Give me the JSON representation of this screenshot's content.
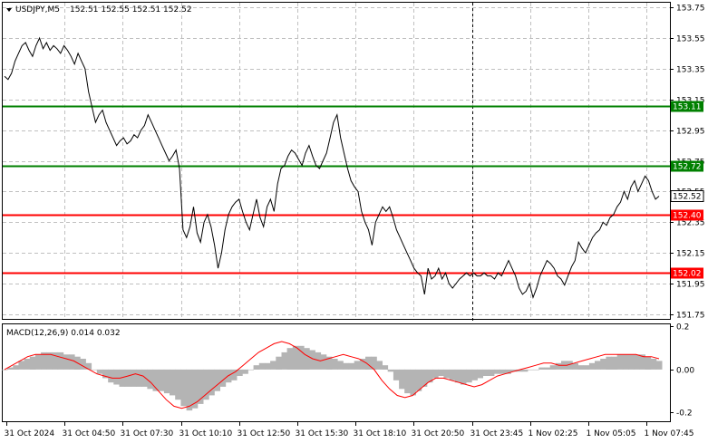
{
  "header": {
    "symbol_label": "USDJPY,M5",
    "ohlc": "152.51 152.55 152.51 152.52",
    "dropdown_icon": "triangle-down-icon"
  },
  "macd": {
    "label": "MACD(12,26,9) 0.014 0.032",
    "histogram_color": "#b4b4b4",
    "signal_color": "#ff0000"
  },
  "levels": [
    {
      "value": "153.11",
      "price": 153.11,
      "color": "#008000"
    },
    {
      "value": "152.72",
      "price": 152.72,
      "color": "#008000"
    },
    {
      "value": "152.40",
      "price": 152.4,
      "color": "#ff0000"
    },
    {
      "value": "152.02",
      "price": 152.02,
      "color": "#ff0000"
    }
  ],
  "current_price": {
    "value": "152.52",
    "price": 152.52
  },
  "chart_data": {
    "type": "line",
    "ylim": [
      151.72,
      153.78
    ],
    "price_ticks": [
      "153.75",
      "153.55",
      "153.35",
      "153.15",
      "152.95",
      "152.75",
      "152.55",
      "152.35",
      "152.15",
      "151.95",
      "151.75"
    ],
    "macd_ticks": [
      "0.2",
      "0.00",
      "-0.2"
    ],
    "time_ticks": [
      "31 Oct 2024",
      "31 Oct 04:50",
      "31 Oct 07:30",
      "31 Oct 10:10",
      "31 Oct 12:50",
      "31 Oct 15:30",
      "31 Oct 18:10",
      "31 Oct 20:50",
      "31 Oct 23:45",
      "1 Nov 02:25",
      "1 Nov 05:05",
      "1 Nov 07:45"
    ],
    "series": [
      {
        "values": [
          153.3,
          153.28,
          153.32,
          153.4,
          153.45,
          153.5,
          153.52,
          153.47,
          153.43,
          153.5,
          153.55,
          153.48,
          153.52,
          153.47,
          153.5,
          153.48,
          153.45,
          153.5,
          153.47,
          153.43,
          153.38,
          153.45,
          153.4,
          153.35,
          153.2,
          153.1,
          153.0,
          153.05,
          153.08,
          153.0,
          152.95,
          152.9,
          152.85,
          152.88,
          152.9,
          152.86,
          152.88,
          152.92,
          152.9,
          152.95,
          152.98,
          153.05,
          153.0,
          152.95,
          152.9,
          152.85,
          152.8,
          152.75,
          152.78,
          152.82,
          152.7,
          152.3,
          152.25,
          152.32,
          152.45,
          152.28,
          152.22,
          152.35,
          152.4,
          152.32,
          152.2,
          152.05,
          152.15,
          152.3,
          152.4,
          152.45,
          152.48,
          152.5,
          152.42,
          152.35,
          152.3,
          152.4,
          152.5,
          152.38,
          152.32,
          152.45,
          152.5,
          152.42,
          152.6,
          152.7,
          152.72,
          152.78,
          152.82,
          152.8,
          152.76,
          152.72,
          152.8,
          152.85,
          152.78,
          152.72,
          152.7,
          152.75,
          152.8,
          152.9,
          153.0,
          153.05,
          152.9,
          152.8,
          152.7,
          152.62,
          152.58,
          152.55,
          152.42,
          152.35,
          152.3,
          152.2,
          152.35,
          152.4,
          152.45,
          152.42,
          152.45,
          152.38,
          152.3,
          152.25,
          152.2,
          152.15,
          152.1,
          152.05,
          152.02,
          152.0,
          151.88,
          152.05,
          151.98,
          152.0,
          152.05,
          151.98,
          152.02,
          151.95,
          151.92,
          151.95,
          151.98,
          152.0,
          152.02,
          152.0,
          152.02,
          152.0,
          152.0,
          152.02,
          152.0,
          152.0,
          151.98,
          152.02,
          152.0,
          152.05,
          152.1,
          152.05,
          152.0,
          151.92,
          151.88,
          151.9,
          151.95,
          151.86,
          151.92,
          152.0,
          152.05,
          152.1,
          152.08,
          152.05,
          152.0,
          151.98,
          151.94,
          152.0,
          152.06,
          152.1,
          152.22,
          152.18,
          152.15,
          152.2,
          152.25,
          152.28,
          152.3,
          152.35,
          152.33,
          152.38,
          152.4,
          152.45,
          152.48,
          152.55,
          152.5,
          152.58,
          152.62,
          152.55,
          152.6,
          152.65,
          152.62,
          152.55,
          152.5,
          152.52
        ]
      }
    ],
    "macd": {
      "hist": [
        0.0,
        0.01,
        0.02,
        0.04,
        0.05,
        0.06,
        0.07,
        0.08,
        0.08,
        0.08,
        0.08,
        0.07,
        0.07,
        0.06,
        0.05,
        0.03,
        0.0,
        -0.02,
        -0.04,
        -0.06,
        -0.07,
        -0.08,
        -0.08,
        -0.08,
        -0.08,
        -0.08,
        -0.09,
        -0.1,
        -0.1,
        -0.11,
        -0.12,
        -0.14,
        -0.17,
        -0.19,
        -0.18,
        -0.16,
        -0.14,
        -0.12,
        -0.1,
        -0.08,
        -0.06,
        -0.05,
        -0.03,
        -0.02,
        0.0,
        0.02,
        0.03,
        0.03,
        0.04,
        0.06,
        0.08,
        0.1,
        0.11,
        0.11,
        0.1,
        0.09,
        0.08,
        0.07,
        0.06,
        0.05,
        0.04,
        0.03,
        0.03,
        0.04,
        0.05,
        0.06,
        0.06,
        0.04,
        0.02,
        -0.01,
        -0.05,
        -0.09,
        -0.11,
        -0.12,
        -0.1,
        -0.08,
        -0.06,
        -0.04,
        -0.03,
        -0.04,
        -0.05,
        -0.06,
        -0.07,
        -0.06,
        -0.05,
        -0.04,
        -0.03,
        -0.03,
        -0.02,
        -0.02,
        -0.02,
        -0.01,
        -0.01,
        -0.01,
        0.0,
        0.0,
        0.01,
        0.01,
        0.02,
        0.03,
        0.04,
        0.04,
        0.03,
        0.02,
        0.02,
        0.03,
        0.04,
        0.05,
        0.06,
        0.06,
        0.07,
        0.07,
        0.07,
        0.07,
        0.07,
        0.06,
        0.05,
        0.04
      ],
      "signal": [
        0.0,
        0.02,
        0.04,
        0.06,
        0.07,
        0.07,
        0.07,
        0.06,
        0.05,
        0.04,
        0.02,
        0.0,
        -0.02,
        -0.03,
        -0.04,
        -0.04,
        -0.03,
        -0.02,
        -0.03,
        -0.06,
        -0.1,
        -0.14,
        -0.17,
        -0.18,
        -0.17,
        -0.15,
        -0.12,
        -0.09,
        -0.06,
        -0.03,
        -0.01,
        0.02,
        0.05,
        0.08,
        0.1,
        0.12,
        0.13,
        0.12,
        0.1,
        0.07,
        0.05,
        0.04,
        0.05,
        0.06,
        0.07,
        0.06,
        0.05,
        0.03,
        0.0,
        -0.05,
        -0.09,
        -0.12,
        -0.13,
        -0.12,
        -0.09,
        -0.06,
        -0.04,
        -0.04,
        -0.05,
        -0.06,
        -0.07,
        -0.08,
        -0.07,
        -0.05,
        -0.03,
        -0.02,
        -0.01,
        0.0,
        0.01,
        0.02,
        0.03,
        0.03,
        0.02,
        0.02,
        0.03,
        0.04,
        0.05,
        0.06,
        0.07,
        0.07,
        0.07,
        0.07,
        0.07,
        0.06,
        0.06,
        0.05
      ]
    }
  }
}
